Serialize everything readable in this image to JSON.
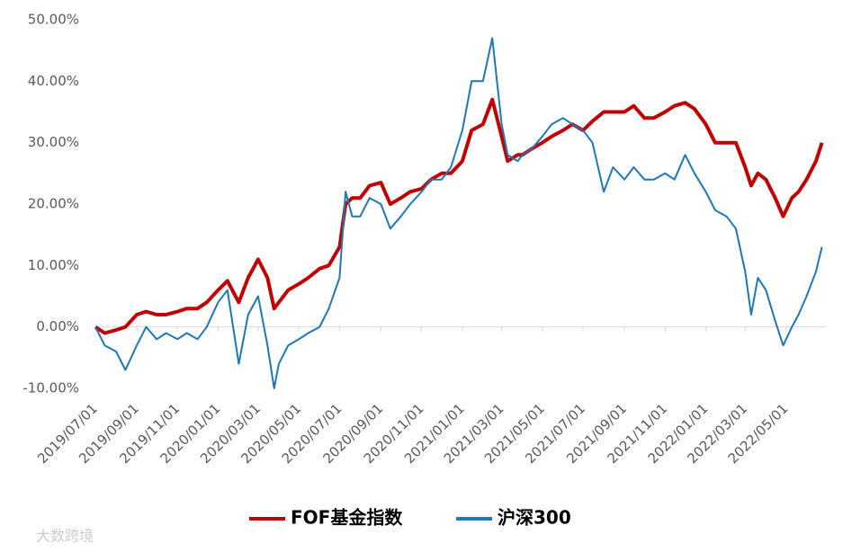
{
  "chart_data": {
    "type": "line",
    "x": [
      "2019/07/01",
      "2019/07/15",
      "2019/08/01",
      "2019/08/15",
      "2019/09/01",
      "2019/09/15",
      "2019/10/01",
      "2019/10/15",
      "2019/11/01",
      "2019/11/15",
      "2019/12/01",
      "2019/12/15",
      "2020/01/01",
      "2020/01/15",
      "2020/02/01",
      "2020/02/15",
      "2020/03/01",
      "2020/03/15",
      "2020/03/25",
      "2020/04/01",
      "2020/04/15",
      "2020/05/01",
      "2020/05/15",
      "2020/06/01",
      "2020/06/15",
      "2020/07/01",
      "2020/07/10",
      "2020/07/20",
      "2020/08/01",
      "2020/08/15",
      "2020/09/01",
      "2020/09/15",
      "2020/10/01",
      "2020/10/15",
      "2020/11/01",
      "2020/11/15",
      "2020/12/01",
      "2020/12/15",
      "2021/01/01",
      "2021/01/15",
      "2021/02/01",
      "2021/02/15",
      "2021/03/01",
      "2021/03/10",
      "2021/03/25",
      "2021/04/01",
      "2021/04/15",
      "2021/05/01",
      "2021/05/15",
      "2021/06/01",
      "2021/06/15",
      "2021/07/01",
      "2021/07/15",
      "2021/08/01",
      "2021/08/15",
      "2021/09/01",
      "2021/09/15",
      "2021/10/01",
      "2021/10/15",
      "2021/11/01",
      "2021/11/15",
      "2021/12/01",
      "2021/12/15",
      "2022/01/01",
      "2022/01/15",
      "2022/02/01",
      "2022/02/15",
      "2022/03/01",
      "2022/03/10",
      "2022/03/20",
      "2022/04/01",
      "2022/04/15",
      "2022/04/27",
      "2022/05/10",
      "2022/05/20",
      "2022/06/01",
      "2022/06/15",
      "2022/06/24"
    ],
    "series": [
      {
        "name": "FOF基金指数",
        "color": "#c00000",
        "width": 4,
        "values": [
          0,
          -1,
          -0.5,
          0,
          2,
          2.5,
          2,
          2,
          2.5,
          3,
          3,
          4,
          6,
          7.5,
          4,
          8,
          11,
          8,
          3,
          4,
          6,
          7,
          8,
          9.5,
          10,
          13,
          20,
          21,
          21,
          23,
          23.5,
          20,
          21,
          22,
          22.5,
          24,
          25,
          25,
          27,
          32,
          33,
          37,
          31,
          27,
          28,
          28,
          29,
          30,
          31,
          32,
          33,
          32,
          33.5,
          35,
          35,
          35,
          36,
          34,
          34,
          35,
          36,
          36.5,
          35.5,
          33,
          30,
          30,
          30,
          26,
          23,
          25,
          24,
          21,
          18,
          21,
          22,
          24,
          27,
          30
        ]
      },
      {
        "name": "沪深300",
        "color": "#1f77b4",
        "width": 2,
        "values": [
          0,
          -3,
          -4,
          -7,
          -3,
          0,
          -2,
          -1,
          -2,
          -1,
          -2,
          0,
          4,
          6,
          -6,
          2,
          5,
          -3,
          -10,
          -6,
          -3,
          -2,
          -1,
          0,
          3,
          8,
          22,
          18,
          18,
          21,
          20,
          16,
          18,
          20,
          22,
          24,
          24,
          26,
          32,
          40,
          40,
          47,
          33,
          28,
          27,
          28,
          29,
          31,
          33,
          34,
          33,
          32,
          30,
          22,
          26,
          24,
          26,
          24,
          24,
          25,
          24,
          28,
          25,
          22,
          19,
          18,
          16,
          9,
          2,
          8,
          6,
          1,
          -3,
          0,
          2,
          5,
          9,
          13
        ]
      }
    ],
    "xlim": [
      "2019/07/01",
      "2022/06/30"
    ],
    "xticks": [
      "2019/07/01",
      "2019/09/01",
      "2019/11/01",
      "2020/01/01",
      "2020/03/01",
      "2020/05/01",
      "2020/07/01",
      "2020/09/01",
      "2020/11/01",
      "2021/01/01",
      "2021/03/01",
      "2021/05/01",
      "2021/07/01",
      "2021/09/01",
      "2021/11/01",
      "2022/01/01",
      "2022/03/01",
      "2022/05/01"
    ],
    "ylim": [
      -10,
      50
    ],
    "yticks": [
      {
        "value": -10,
        "label": "-10.00%"
      },
      {
        "value": 0,
        "label": "0.00%"
      },
      {
        "value": 10,
        "label": "10.00%"
      },
      {
        "value": 20,
        "label": "20.00%"
      },
      {
        "value": 30,
        "label": "30.00%"
      },
      {
        "value": 40,
        "label": "40.00%"
      },
      {
        "value": 50,
        "label": "50.00%"
      }
    ],
    "grid": false,
    "legend": "bottom",
    "watermark": "大数跨境"
  }
}
